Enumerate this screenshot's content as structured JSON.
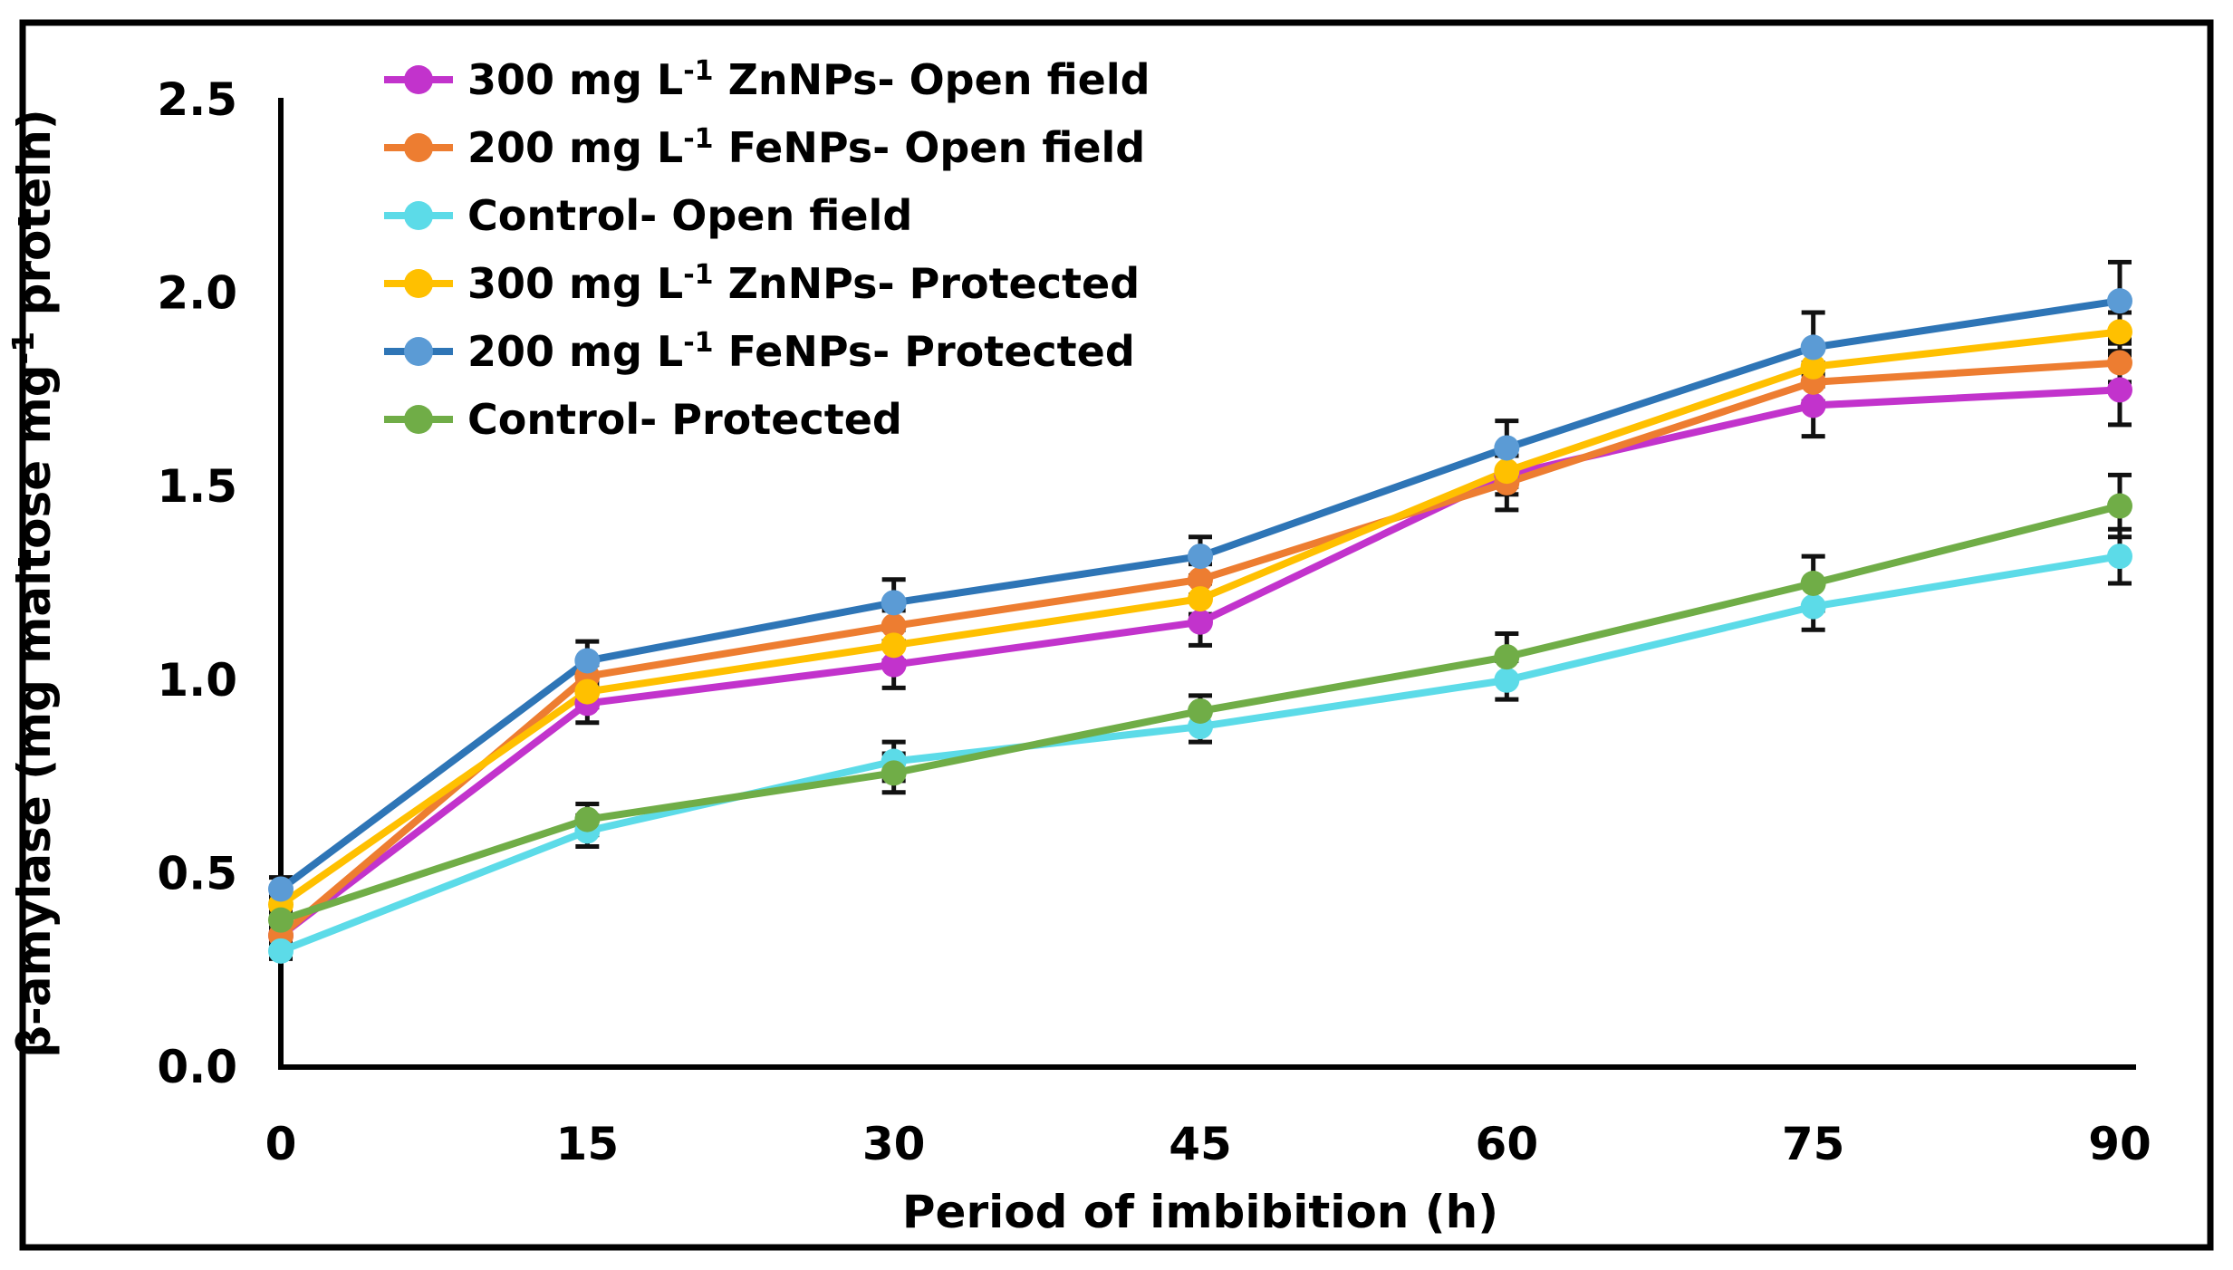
{
  "figure": {
    "background": "#ffffff",
    "frame_color": "#000000"
  },
  "chart_data": {
    "type": "line",
    "title": "",
    "xlabel": "Period of imbibition (h)",
    "ylabel": "β-amylase (mg maltose mg⁻¹ protein)",
    "x": [
      0,
      15,
      30,
      45,
      60,
      75,
      90
    ],
    "x_tick_labels": [
      "0",
      "15",
      "30",
      "45",
      "60",
      "75",
      "90"
    ],
    "xlim": [
      0,
      90
    ],
    "y_ticks": [
      0.0,
      0.5,
      1.0,
      1.5,
      2.0,
      2.5
    ],
    "y_tick_labels": [
      "0.0",
      "0.5",
      "1.0",
      "1.5",
      "2.0",
      "2.5"
    ],
    "ylim": [
      0,
      2.5
    ],
    "grid": false,
    "legend_position": "top-left-inside",
    "error_bars": true,
    "error_bar_color": "#111111",
    "series": [
      {
        "name": "300 mg L⁻¹ ZnNPs- Open field",
        "color": "#C233CC",
        "values": [
          0.34,
          0.94,
          1.04,
          1.15,
          1.53,
          1.71,
          1.75
        ],
        "errors": [
          0.02,
          0.05,
          0.06,
          0.06,
          0.05,
          0.08,
          0.09
        ]
      },
      {
        "name": "200 mg L⁻¹ FeNPs- Open field",
        "color": "#ED7D31",
        "values": [
          0.34,
          1.01,
          1.14,
          1.26,
          1.51,
          1.77,
          1.82
        ],
        "errors": [
          0.02,
          0.03,
          0.04,
          0.04,
          0.07,
          0.05,
          0.05
        ]
      },
      {
        "name": "Control- Open field",
        "color": "#5CDBE8",
        "values": [
          0.3,
          0.61,
          0.79,
          0.88,
          1.0,
          1.19,
          1.32
        ],
        "errors": [
          0.02,
          0.04,
          0.05,
          0.04,
          0.05,
          0.06,
          0.07
        ]
      },
      {
        "name": "300 mg L⁻¹ ZnNPs- Protected",
        "color": "#FFC000",
        "values": [
          0.42,
          0.97,
          1.09,
          1.21,
          1.54,
          1.81,
          1.9
        ],
        "errors": [
          0.02,
          0.04,
          0.04,
          0.04,
          0.04,
          0.05,
          0.05
        ]
      },
      {
        "name": "200 mg L⁻¹ FeNPs- Protected",
        "color": "#2E75B6",
        "marker_color": "#5B9BD5",
        "values": [
          0.46,
          1.05,
          1.2,
          1.32,
          1.6,
          1.86,
          1.98
        ],
        "errors": [
          0.03,
          0.05,
          0.06,
          0.05,
          0.07,
          0.09,
          0.1
        ]
      },
      {
        "name": "Control- Protected",
        "color": "#70AD47",
        "values": [
          0.38,
          0.64,
          0.76,
          0.92,
          1.06,
          1.25,
          1.45
        ],
        "errors": [
          0.02,
          0.04,
          0.05,
          0.04,
          0.06,
          0.07,
          0.08
        ]
      }
    ]
  }
}
